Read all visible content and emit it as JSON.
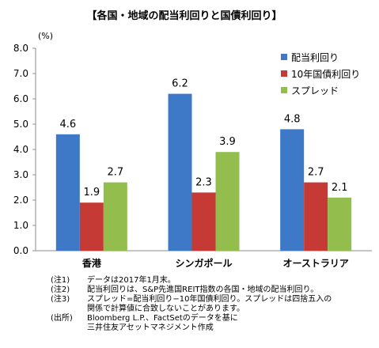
{
  "chart_data": {
    "type": "bar",
    "title": "【各国・地域の配当利回りと国債利回り】",
    "unit_label": "(%)",
    "categories": [
      "香港",
      "シンガポール",
      "オーストラリア"
    ],
    "series": [
      {
        "name": "配当利回り",
        "color": "#3e79c8",
        "values": [
          4.6,
          6.2,
          4.8
        ],
        "labels": [
          "4.6",
          "6.2",
          "4.8"
        ]
      },
      {
        "name": "10年国債利回り",
        "color": "#c53a35",
        "values": [
          1.9,
          2.3,
          2.7
        ],
        "labels": [
          "1.9",
          "2.3",
          "2.7"
        ]
      },
      {
        "name": "スプレッド",
        "color": "#93be4d",
        "values": [
          2.7,
          3.9,
          2.1
        ],
        "labels": [
          "2.7",
          "3.9",
          "2.1"
        ]
      }
    ],
    "ylim": [
      0,
      8
    ],
    "yticks": [
      "0.0",
      "1.0",
      "2.0",
      "3.0",
      "4.0",
      "5.0",
      "6.0",
      "7.0",
      "8.0"
    ],
    "grid": false,
    "legend_position": "top-right"
  },
  "notes": [
    {
      "label": "(注1)",
      "text": "データは2017年1月末。"
    },
    {
      "label": "(注2)",
      "text": "配当利回りは、S&P先進国REIT指数の各国・地域の配当利回り。"
    },
    {
      "label": "(注3)",
      "text": "スプレッド=配当利回り−10年国債利回り。スプレッドは四捨五入の"
    },
    {
      "label": "",
      "text": "関係で計算値に合致しないことがあります。"
    },
    {
      "label": "(出所)",
      "text": "Bloomberg L.P.、FactSetのデータを基に"
    },
    {
      "label": "",
      "text": "三井住友アセットマネジメント作成"
    }
  ]
}
